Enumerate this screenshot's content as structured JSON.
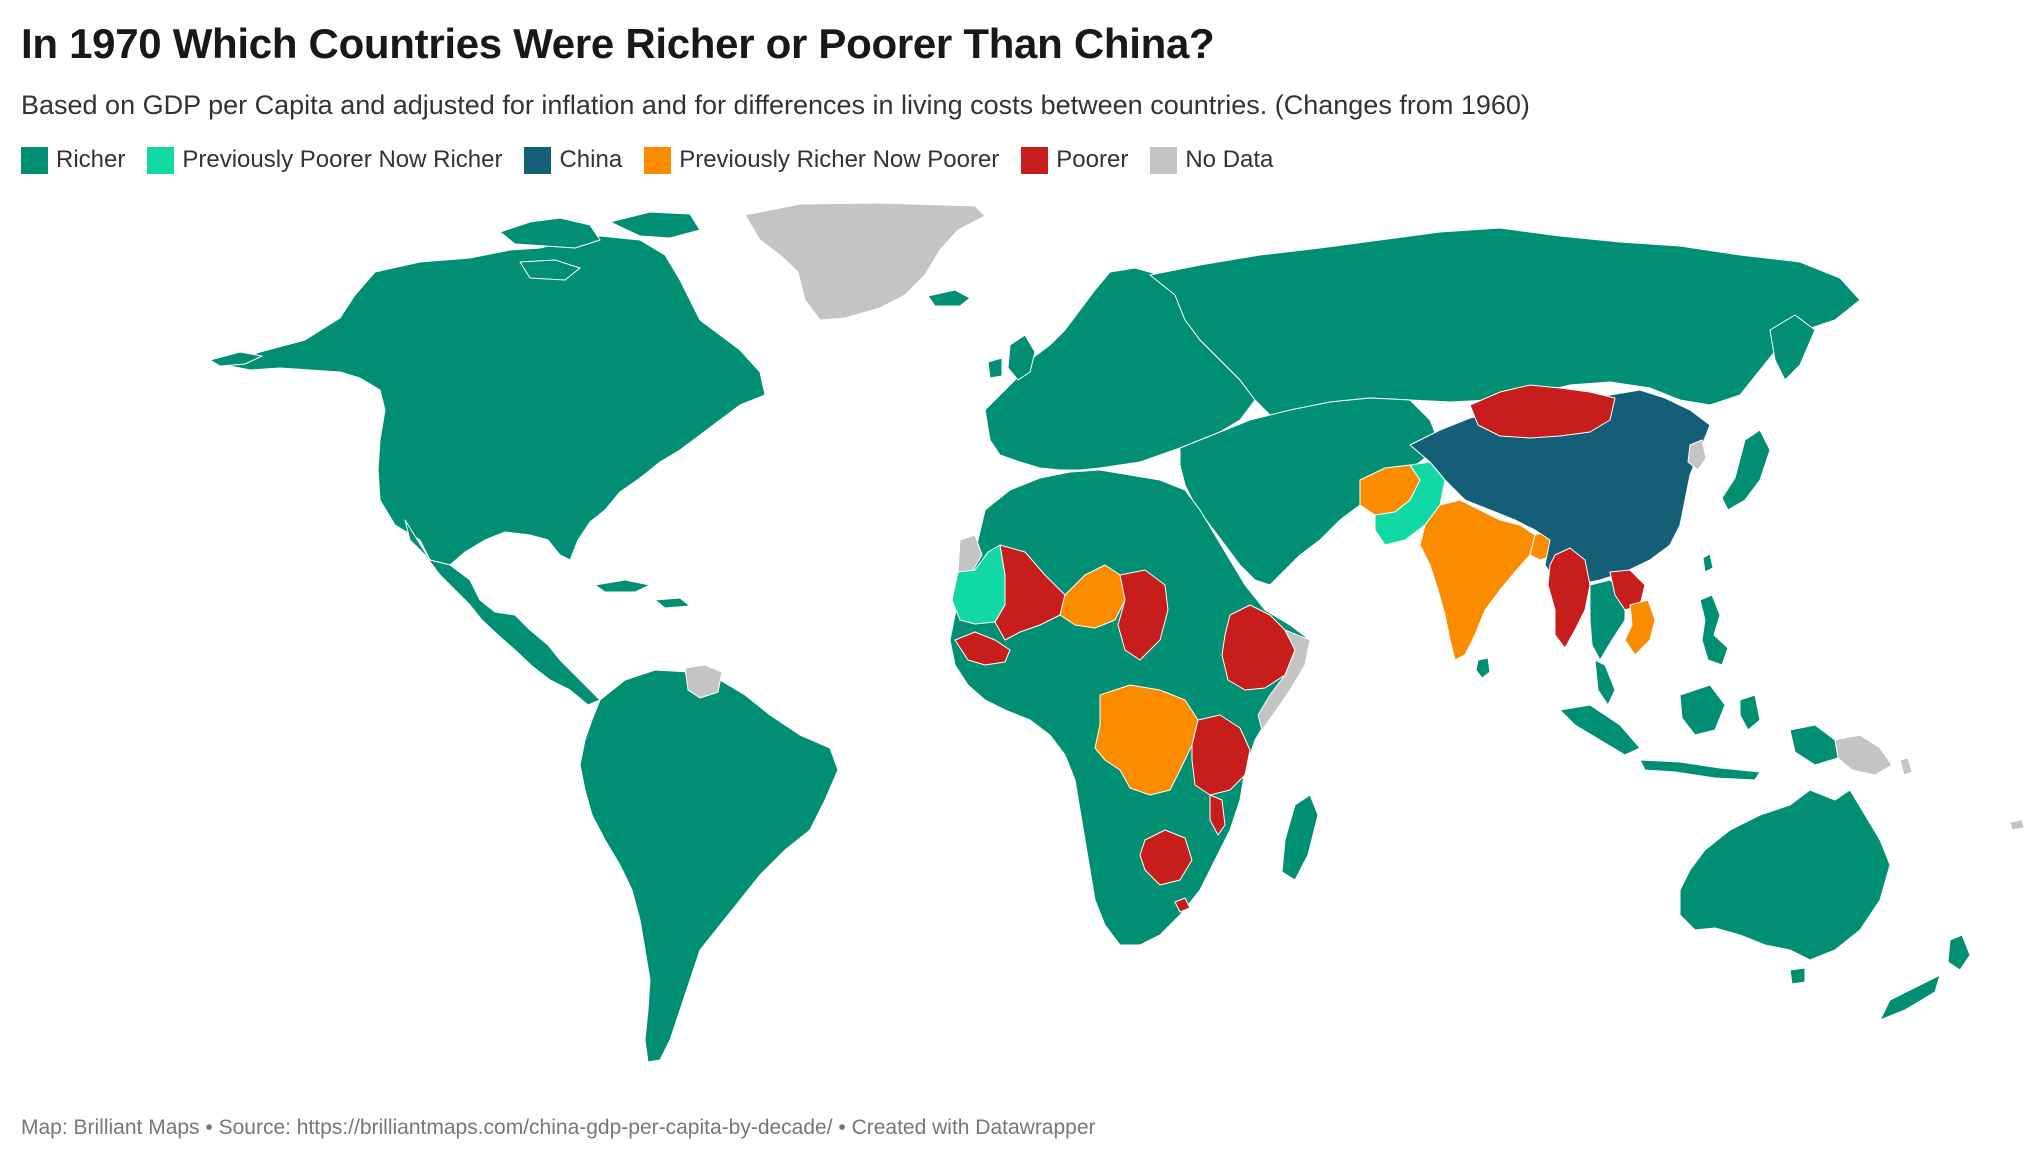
{
  "header": {
    "title": "In 1970 Which Countries Were Richer or Poorer Than China?",
    "subtitle": "Based on GDP per Capita and adjusted for inflation and for differences in living costs between countries. (Changes from 1960)"
  },
  "legend": {
    "items": [
      {
        "label": "Richer",
        "color": "#008f72"
      },
      {
        "label": "Previously Poorer Now Richer",
        "color": "#11d9a5"
      },
      {
        "label": "China",
        "color": "#155e78"
      },
      {
        "label": "Previously Richer Now Poorer",
        "color": "#fb8c00"
      },
      {
        "label": "Poorer",
        "color": "#c71e1d"
      },
      {
        "label": "No Data",
        "color": "#c4c4c4"
      }
    ]
  },
  "footer": {
    "credit": "Map: Brilliant Maps • Source: https://brilliantmaps.com/china-gdp-per-capita-by-decade/ • Created with Datawrapper"
  },
  "colors": {
    "richer": "#008f72",
    "previously_poorer_now_richer": "#11d9a5",
    "china": "#155e78",
    "previously_richer_now_poorer": "#fb8c00",
    "poorer": "#c71e1d",
    "no_data": "#c4c4c4"
  }
}
